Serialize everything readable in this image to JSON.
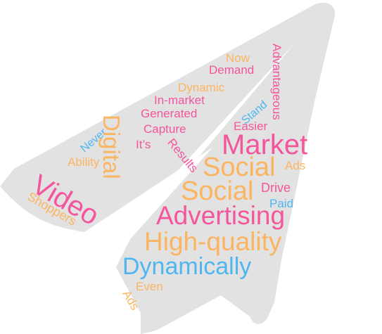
{
  "colors": {
    "shape": "#e2e2e2",
    "pink": "#f4559c",
    "orange": "#fbb561",
    "blue": "#4fb6f0"
  },
  "words": [
    {
      "text": "Now",
      "color": "orange"
    },
    {
      "text": "Demand",
      "color": "pink"
    },
    {
      "text": "Advantageous",
      "color": "pink"
    },
    {
      "text": "Dynamic",
      "color": "orange"
    },
    {
      "text": "In-market",
      "color": "pink"
    },
    {
      "text": "Stand",
      "color": "blue"
    },
    {
      "text": "Generated",
      "color": "pink"
    },
    {
      "text": "Easier",
      "color": "pink"
    },
    {
      "text": "Capture",
      "color": "pink"
    },
    {
      "text": "Never",
      "color": "blue"
    },
    {
      "text": "Digital",
      "color": "orange"
    },
    {
      "text": "It’s",
      "color": "pink"
    },
    {
      "text": "Results",
      "color": "pink"
    },
    {
      "text": "Market",
      "color": "pink"
    },
    {
      "text": "Ability",
      "color": "orange"
    },
    {
      "text": "Social",
      "color": "orange"
    },
    {
      "text": "Ads",
      "color": "orange"
    },
    {
      "text": "Video",
      "color": "pink"
    },
    {
      "text": "Drive",
      "color": "pink"
    },
    {
      "text": "Social",
      "color": "orange"
    },
    {
      "text": "Shoppers",
      "color": "orange"
    },
    {
      "text": "Paid",
      "color": "blue"
    },
    {
      "text": "Advertising",
      "color": "pink"
    },
    {
      "text": "High-quality",
      "color": "orange"
    },
    {
      "text": "Dynamically",
      "color": "blue"
    },
    {
      "text": "Even",
      "color": "orange"
    },
    {
      "text": "Ads",
      "color": "orange"
    }
  ]
}
